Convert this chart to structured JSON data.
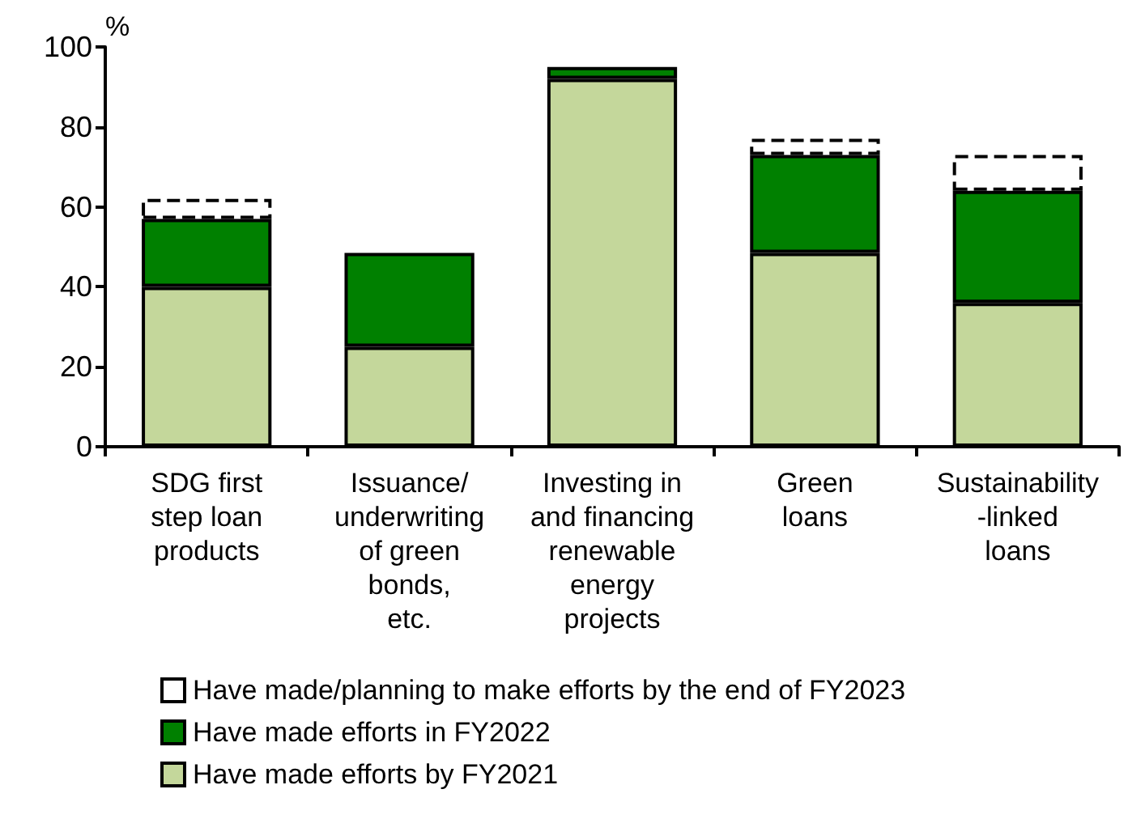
{
  "chart_data": {
    "type": "bar",
    "stacked": true,
    "ylabel": "%",
    "categories": [
      "SDG first\nstep loan\nproducts",
      "Issuance/\nunderwriting\nof green\nbonds,\netc.",
      "Investing in\nand financing\nrenewable\nenergy\nprojects",
      "Green\nloans",
      "Sustainability\n-linked\nloans"
    ],
    "series": [
      {
        "name": "Have made efforts by FY2021",
        "color": "#c4d79b",
        "values": [
          40,
          25,
          92,
          48.5,
          36
        ]
      },
      {
        "name": "Have made efforts in FY2022",
        "color": "#008000",
        "values": [
          17,
          23.5,
          3,
          24.5,
          28
        ]
      },
      {
        "name": "Have made/planning to make efforts by the end of FY2023",
        "color": "#ffffff",
        "line_style": "dashed",
        "values": [
          5,
          null,
          null,
          4,
          9
        ]
      }
    ],
    "ylim": [
      0,
      100
    ],
    "yticks": [
      0,
      20,
      40,
      60,
      80,
      100
    ],
    "grid": false,
    "legend": "bottom"
  }
}
